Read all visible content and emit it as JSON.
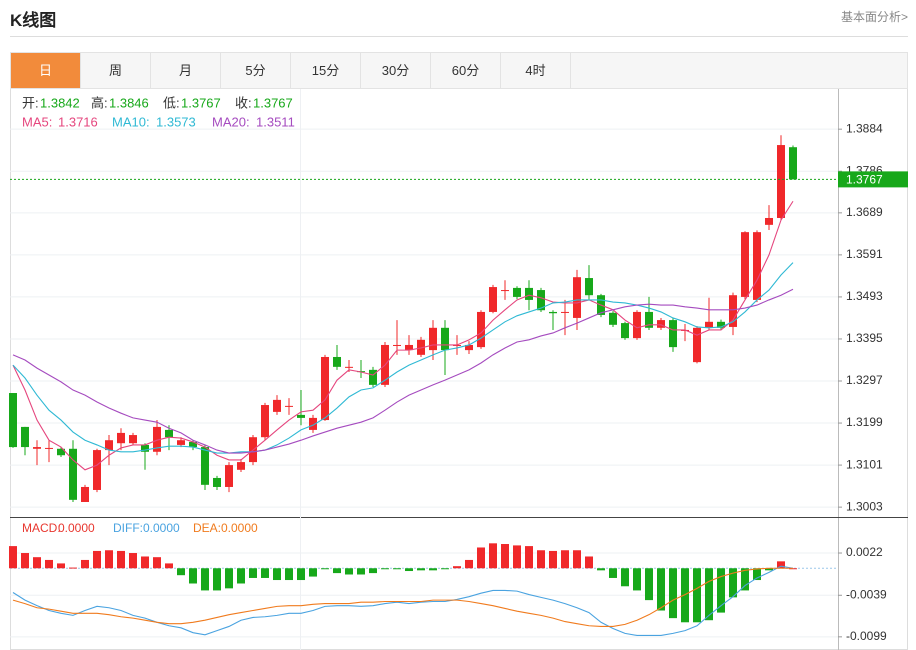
{
  "header": {
    "title": "K线图",
    "link": "基本面分析>"
  },
  "tabs": [
    "日",
    "周",
    "月",
    "5分",
    "15分",
    "30分",
    "60分",
    "4时"
  ],
  "active_tab": 0,
  "chart_data": [
    {
      "type": "candlestick",
      "open": [
        1.3269,
        1.319,
        1.3139,
        1.3139,
        1.3139,
        1.3139,
        1.3015,
        1.3043,
        1.3136,
        1.3152,
        1.3152,
        1.3148,
        1.3132,
        1.3183,
        1.3148,
        1.3155,
        1.3143,
        1.3071,
        1.305,
        1.309,
        1.3108,
        1.3166,
        1.3225,
        1.3237,
        1.3218,
        1.3183,
        1.3206,
        1.3353,
        1.3328,
        1.332,
        1.3323,
        1.3288,
        1.3379,
        1.3369,
        1.3358,
        1.3369,
        1.3421,
        1.3379,
        1.3369,
        1.3376,
        1.3458,
        1.3507,
        1.3514,
        1.3514,
        1.3509,
        1.3458,
        1.3456,
        1.3444,
        1.3537,
        1.3497,
        1.3456,
        1.3432,
        1.3397,
        1.3458,
        1.3421,
        1.3439,
        1.3414,
        1.3341,
        1.3421,
        1.3435,
        1.3423,
        1.3493,
        1.3486,
        1.3661,
        1.3677,
        1.3842
      ],
      "high": [
        1.3269,
        1.319,
        1.3159,
        1.3159,
        1.3143,
        1.3159,
        1.3055,
        1.3139,
        1.3171,
        1.3187,
        1.3176,
        1.3152,
        1.3206,
        1.3194,
        1.3166,
        1.3159,
        1.3148,
        1.3076,
        1.3108,
        1.3115,
        1.3171,
        1.3246,
        1.3264,
        1.3257,
        1.3276,
        1.3218,
        1.3358,
        1.3381,
        1.3346,
        1.3346,
        1.333,
        1.3388,
        1.3439,
        1.3404,
        1.34,
        1.3439,
        1.3439,
        1.3404,
        1.339,
        1.3462,
        1.3521,
        1.3532,
        1.3518,
        1.3532,
        1.3514,
        1.3462,
        1.3486,
        1.3556,
        1.3567,
        1.35,
        1.346,
        1.3435,
        1.3462,
        1.3493,
        1.3444,
        1.3444,
        1.343,
        1.3425,
        1.3491,
        1.344,
        1.3503,
        1.3646,
        1.3648,
        1.3707,
        1.387,
        1.3846
      ],
      "low": [
        1.3141,
        1.3124,
        1.3101,
        1.3108,
        1.312,
        1.3015,
        1.3015,
        1.3038,
        1.3101,
        1.3136,
        1.3148,
        1.309,
        1.3124,
        1.3136,
        1.3143,
        1.3136,
        1.3043,
        1.3043,
        1.3038,
        1.3085,
        1.3101,
        1.3159,
        1.3218,
        1.3218,
        1.3194,
        1.3176,
        1.3204,
        1.3323,
        1.3318,
        1.3304,
        1.3283,
        1.3283,
        1.3358,
        1.3358,
        1.3353,
        1.3346,
        1.3311,
        1.3358,
        1.336,
        1.3372,
        1.3455,
        1.3486,
        1.3488,
        1.3462,
        1.3458,
        1.3416,
        1.3404,
        1.3416,
        1.3486,
        1.3446,
        1.3423,
        1.3393,
        1.3393,
        1.3416,
        1.3416,
        1.3365,
        1.339,
        1.3338,
        1.3416,
        1.3416,
        1.3404,
        1.3488,
        1.3481,
        1.3649,
        1.3672,
        1.3767
      ],
      "close": [
        1.3143,
        1.3143,
        1.3143,
        1.3141,
        1.3124,
        1.302,
        1.305,
        1.3136,
        1.3159,
        1.3176,
        1.3171,
        1.3132,
        1.319,
        1.3166,
        1.3159,
        1.3143,
        1.3055,
        1.305,
        1.3101,
        1.3108,
        1.3166,
        1.3241,
        1.3253,
        1.3239,
        1.3211,
        1.3211,
        1.3353,
        1.333,
        1.333,
        1.3318,
        1.3288,
        1.3381,
        1.3381,
        1.3381,
        1.3393,
        1.3421,
        1.3369,
        1.3381,
        1.3381,
        1.3458,
        1.3516,
        1.3509,
        1.3493,
        1.3486,
        1.3462,
        1.3455,
        1.3458,
        1.3539,
        1.3497,
        1.3451,
        1.3428,
        1.3397,
        1.3458,
        1.3421,
        1.3439,
        1.3376,
        1.3416,
        1.3421,
        1.3435,
        1.3421,
        1.3497,
        1.3644,
        1.3644,
        1.3677,
        1.3847,
        1.3767
      ],
      "up_color": "#f0282a",
      "down_color": "#17a81a",
      "ohlc_labels": [
        "开:",
        "高:",
        "低:",
        "收:"
      ],
      "ylim": [
        1.298,
        1.398
      ],
      "yticks": [
        1.3884,
        1.3786,
        1.3689,
        1.3591,
        1.3493,
        1.3395,
        1.3297,
        1.3199,
        1.3101,
        1.3003
      ],
      "grid": true,
      "series": [
        {
          "name": "MA5:",
          "color": "#e5467e",
          "values": [
            1.3334,
            1.3276,
            1.3206,
            1.3159,
            1.3143,
            1.3113,
            1.309,
            1.3101,
            1.3124,
            1.3141,
            1.3148,
            1.3148,
            1.3159,
            1.3166,
            1.3164,
            1.3155,
            1.3143,
            1.3124,
            1.3113,
            1.3113,
            1.3136,
            1.3159,
            1.3183,
            1.3206,
            1.3225,
            1.3229,
            1.3253,
            1.3299,
            1.3323,
            1.3318,
            1.3311,
            1.3334,
            1.3369,
            1.3369,
            1.3374,
            1.3381,
            1.3381,
            1.3381,
            1.3393,
            1.3409,
            1.3439,
            1.3463,
            1.3486,
            1.3497,
            1.3491,
            1.3481,
            1.3479,
            1.3479,
            1.3486,
            1.3474,
            1.3463,
            1.3439,
            1.3421,
            1.3428,
            1.3428,
            1.3416,
            1.3416,
            1.3404,
            1.3416,
            1.3416,
            1.3439,
            1.3486,
            1.3532,
            1.3591,
            1.3672,
            1.3716
          ]
        },
        {
          "name": "MA10:",
          "color": "#2fb9d4",
          "values": [
            1.3334,
            1.3304,
            1.3264,
            1.3229,
            1.3206,
            1.3178,
            1.3159,
            1.3148,
            1.3136,
            1.3132,
            1.3132,
            1.3136,
            1.3141,
            1.3145,
            1.3145,
            1.3143,
            1.3136,
            1.3129,
            1.3129,
            1.3132,
            1.3132,
            1.3136,
            1.3148,
            1.3164,
            1.3183,
            1.3194,
            1.3211,
            1.3234,
            1.326,
            1.3276,
            1.3281,
            1.3299,
            1.3318,
            1.3334,
            1.3346,
            1.3358,
            1.3369,
            1.3374,
            1.3381,
            1.3397,
            1.3416,
            1.3435,
            1.3449,
            1.3458,
            1.3467,
            1.3479,
            1.3481,
            1.3486,
            1.3486,
            1.3486,
            1.3481,
            1.3479,
            1.3474,
            1.3467,
            1.3458,
            1.3444,
            1.3435,
            1.3423,
            1.3421,
            1.3423,
            1.3435,
            1.3458,
            1.3486,
            1.3509,
            1.3544,
            1.3573
          ]
        },
        {
          "name": "MA20:",
          "color": "#a54bbf",
          "values": [
            1.3358,
            1.3346,
            1.3327,
            1.3311,
            1.3295,
            1.3276,
            1.3264,
            1.3248,
            1.3234,
            1.3222,
            1.3211,
            1.3206,
            1.3201,
            1.3187,
            1.3176,
            1.3159,
            1.3148,
            1.3136,
            1.3129,
            1.3129,
            1.3132,
            1.3136,
            1.3143,
            1.315,
            1.3159,
            1.3169,
            1.3178,
            1.3187,
            1.3194,
            1.3201,
            1.3211,
            1.3229,
            1.3248,
            1.3264,
            1.3276,
            1.3288,
            1.3299,
            1.3311,
            1.3323,
            1.3339,
            1.3358,
            1.3374,
            1.3388,
            1.3393,
            1.3402,
            1.3409,
            1.3421,
            1.3432,
            1.3444,
            1.3456,
            1.3463,
            1.347,
            1.3474,
            1.3476,
            1.3474,
            1.3474,
            1.347,
            1.3467,
            1.3463,
            1.3463,
            1.3463,
            1.3467,
            1.3474,
            1.3486,
            1.3497,
            1.3511
          ]
        }
      ]
    },
    {
      "type": "macd",
      "up_color": "#f0282a",
      "down_color": "#17a81a",
      "ylim": [
        -0.0118,
        0.0074
      ],
      "yticks": [
        0.0022,
        -0.0039,
        -0.0099
      ],
      "grid": true,
      "series": [
        {
          "name": "MACD:",
          "type": "bar",
          "color": "#e8372f",
          "last_label": "0.0000",
          "values": [
            0.0032,
            0.0022,
            0.0016,
            0.0012,
            0.0007,
            0.0001,
            0.0012,
            0.0025,
            0.0026,
            0.0025,
            0.0022,
            0.0017,
            0.0016,
            0.0007,
            -0.001,
            -0.0022,
            -0.0032,
            -0.0032,
            -0.0029,
            -0.0022,
            -0.0014,
            -0.0014,
            -0.0017,
            -0.0017,
            -0.0017,
            -0.0012,
            -0.0001,
            -0.0007,
            -0.0009,
            -0.0009,
            -0.0007,
            -0.0001,
            -0.0001,
            -0.0004,
            -0.0003,
            -0.0003,
            -0.0001,
            0.0003,
            0.0012,
            0.003,
            0.0036,
            0.0035,
            0.0033,
            0.0032,
            0.0026,
            0.0025,
            0.0026,
            0.0026,
            0.0017,
            -0.0003,
            -0.0014,
            -0.0026,
            -0.0032,
            -0.0046,
            -0.0061,
            -0.0072,
            -0.0078,
            -0.0078,
            -0.0075,
            -0.0064,
            -0.0042,
            -0.0032,
            -0.0017,
            -0.0003,
            0.001,
            0
          ]
        },
        {
          "name": "DIFF:",
          "type": "line",
          "color": "#4aa3e0",
          "last_label": "0.0000",
          "values": [
            -0.0035,
            -0.0046,
            -0.0054,
            -0.0061,
            -0.0065,
            -0.0068,
            -0.0061,
            -0.0055,
            -0.0057,
            -0.0061,
            -0.0068,
            -0.0072,
            -0.0078,
            -0.0083,
            -0.0086,
            -0.0093,
            -0.0096,
            -0.009,
            -0.0084,
            -0.0075,
            -0.0071,
            -0.007,
            -0.0068,
            -0.0065,
            -0.0065,
            -0.0061,
            -0.0055,
            -0.0054,
            -0.0054,
            -0.0055,
            -0.0054,
            -0.0051,
            -0.0049,
            -0.0051,
            -0.0049,
            -0.0048,
            -0.0048,
            -0.0045,
            -0.0041,
            -0.0036,
            -0.0032,
            -0.0032,
            -0.0033,
            -0.0038,
            -0.0042,
            -0.0046,
            -0.0051,
            -0.0057,
            -0.0064,
            -0.0078,
            -0.0087,
            -0.0094,
            -0.0097,
            -0.0097,
            -0.0097,
            -0.0094,
            -0.009,
            -0.0083,
            -0.0068,
            -0.0054,
            -0.0041,
            -0.0025,
            -0.0014,
            -0.0006,
            0.0003,
            0
          ]
        },
        {
          "name": "DEA:",
          "type": "line",
          "color": "#f07b1e",
          "last_label": "0.0000",
          "values": [
            -0.0046,
            -0.0051,
            -0.0057,
            -0.0059,
            -0.0062,
            -0.0065,
            -0.0065,
            -0.0065,
            -0.0067,
            -0.007,
            -0.0072,
            -0.0075,
            -0.0078,
            -0.008,
            -0.008,
            -0.0078,
            -0.0075,
            -0.0071,
            -0.0067,
            -0.0064,
            -0.0061,
            -0.0058,
            -0.0055,
            -0.0054,
            -0.0054,
            -0.0052,
            -0.0051,
            -0.0051,
            -0.0051,
            -0.0049,
            -0.0049,
            -0.0048,
            -0.0048,
            -0.0048,
            -0.0048,
            -0.0046,
            -0.0046,
            -0.0046,
            -0.0048,
            -0.0051,
            -0.0054,
            -0.0058,
            -0.0062,
            -0.0065,
            -0.0068,
            -0.0072,
            -0.0077,
            -0.008,
            -0.0083,
            -0.0084,
            -0.0084,
            -0.0081,
            -0.0075,
            -0.0067,
            -0.0057,
            -0.0046,
            -0.0038,
            -0.0029,
            -0.0019,
            -0.0012,
            -0.0007,
            -0.0003,
            -0.0001,
            0,
            0,
            0
          ]
        }
      ]
    }
  ]
}
